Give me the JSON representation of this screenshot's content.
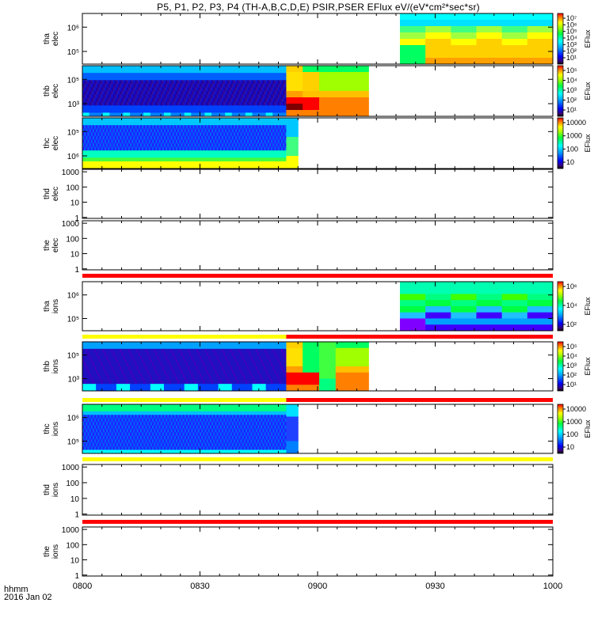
{
  "title": "P5, P1, P2, P3, P4 (TH-A,B,C,D,E) PSIR,PSER EFlux eV/(eV*cm²*sec*sr)",
  "footer": {
    "line1": "hhmm",
    "line2": "2016 Jan 02"
  },
  "chart_data": {
    "type": "heatmap",
    "x_axis": {
      "range": [
        "0800",
        "1000"
      ],
      "tick_labels": [
        "0800",
        "0830",
        "0900",
        "0930",
        "1000"
      ]
    },
    "colorbar_label": "EFlux",
    "panels": [
      {
        "name": "thd_elec_top",
        "ylabel": [
          "tha",
          "elec"
        ],
        "yticks": [
          "10⁶",
          "10⁵"
        ],
        "data_time_range": [
          "0921",
          "1000"
        ],
        "colorbar_ticks": [
          "10⁷",
          "10⁶",
          "10⁵",
          "10⁴",
          "10³",
          "10²",
          "10¹"
        ]
      },
      {
        "name": "thb_elec",
        "ylabel": [
          "thb",
          "elec"
        ],
        "yticks": [
          "10⁵",
          "10³"
        ],
        "data_time_range": [
          "0800",
          "0913"
        ],
        "colorbar_ticks": [
          "10⁵",
          "10⁴",
          "10³",
          "10²",
          "10¹"
        ]
      },
      {
        "name": "thc_elec",
        "ylabel": [
          "thc",
          "elec"
        ],
        "yticks": [
          "10⁵",
          "10⁶"
        ],
        "data_time_range": [
          "0800",
          "0855"
        ],
        "colorbar_ticks": [
          "10000",
          "1000",
          "100",
          "10"
        ]
      },
      {
        "name": "thd_elec",
        "ylabel": [
          "thd",
          "elec"
        ],
        "yticks": [
          "1000",
          "100",
          "10",
          "1"
        ]
      },
      {
        "name": "the_elec",
        "ylabel": [
          "the",
          "elec"
        ],
        "yticks": [
          "1000",
          "100",
          "10",
          "1"
        ]
      },
      {
        "name": "tha_ions",
        "ylabel": [
          "tha",
          "ions"
        ],
        "yticks": [
          "10⁶",
          "10⁵"
        ],
        "data_time_range": [
          "0921",
          "1000"
        ],
        "colorbar_ticks": [
          "10⁶",
          "10⁴",
          "10²"
        ]
      },
      {
        "name": "thb_ions",
        "ylabel": [
          "thb",
          "ions"
        ],
        "yticks": [
          "10⁵",
          "10³"
        ],
        "data_time_range": [
          "0800",
          "0913"
        ],
        "colorbar_ticks": [
          "10⁵",
          "10⁴",
          "10³",
          "10²",
          "10¹"
        ]
      },
      {
        "name": "thc_ions",
        "ylabel": [
          "thc",
          "ions"
        ],
        "yticks": [
          "10⁶",
          "10⁵"
        ],
        "data_time_range": [
          "0800",
          "0855"
        ],
        "colorbar_ticks": [
          "10000",
          "1000",
          "100",
          "10"
        ]
      },
      {
        "name": "thd_ions",
        "ylabel": [
          "thd",
          "ions"
        ],
        "yticks": [
          "1000",
          "100",
          "10",
          "1"
        ]
      },
      {
        "name": "the_ions",
        "ylabel": [
          "the",
          "ions"
        ],
        "yticks": [
          "1000",
          "100",
          "10",
          "1"
        ]
      }
    ]
  }
}
